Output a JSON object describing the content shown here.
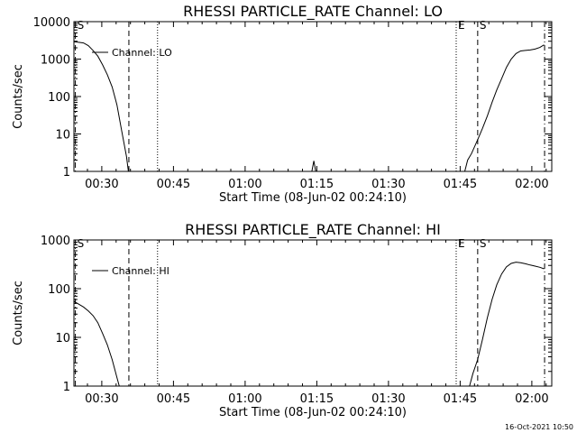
{
  "footer": {
    "timestamp": "16-Oct-2021 10:50"
  },
  "chart_data": [
    {
      "type": "line",
      "title": "RHESSI PARTICLE_RATE Channel: LO",
      "xlabel": "Start Time (08-Jun-02 00:24:10)",
      "ylabel": "Counts/sec",
      "x_unit": "minutes after 00:24:10",
      "xlim": [
        0,
        100
      ],
      "ylim": [
        1,
        10000
      ],
      "y_scale": "log",
      "grid": false,
      "legend_position": "top-left",
      "x_ticks": [
        {
          "value": 5.83,
          "label": "00:30"
        },
        {
          "value": 20.83,
          "label": "00:45"
        },
        {
          "value": 35.83,
          "label": "01:00"
        },
        {
          "value": 50.83,
          "label": "01:15"
        },
        {
          "value": 65.83,
          "label": "01:30"
        },
        {
          "value": 80.83,
          "label": "01:45"
        },
        {
          "value": 95.83,
          "label": "02:00"
        }
      ],
      "y_ticks": [
        {
          "value": 1,
          "label": "1"
        },
        {
          "value": 10,
          "label": "10"
        },
        {
          "value": 100,
          "label": "100"
        },
        {
          "value": 1000,
          "label": "1000"
        },
        {
          "value": 10000,
          "label": "10000"
        }
      ],
      "vlines": [
        {
          "x": 0.3,
          "style": "dash-dot",
          "label": "S"
        },
        {
          "x": 11.5,
          "style": "dashed",
          "label": ""
        },
        {
          "x": 17.5,
          "style": "dotted",
          "label": ""
        },
        {
          "x": 80.0,
          "style": "dotted",
          "label": "E"
        },
        {
          "x": 84.5,
          "style": "dashed",
          "label": "S"
        },
        {
          "x": 98.5,
          "style": "dash-dot",
          "label": ""
        }
      ],
      "series": [
        {
          "name": "Channel: LO",
          "points": [
            [
              0,
              2900
            ],
            [
              1,
              2800
            ],
            [
              2,
              2700
            ],
            [
              3,
              2300
            ],
            [
              4,
              1700
            ],
            [
              5,
              1200
            ],
            [
              6,
              700
            ],
            [
              7,
              380
            ],
            [
              8,
              180
            ],
            [
              9,
              60
            ],
            [
              10,
              12
            ],
            [
              11,
              2.5
            ],
            [
              11.4,
              1
            ],
            [
              49.8,
              1
            ],
            [
              50.2,
              1.9
            ],
            [
              50.6,
              1
            ],
            [
              81.8,
              1
            ],
            [
              82.4,
              2
            ],
            [
              83.2,
              3
            ],
            [
              84.5,
              7
            ],
            [
              85.5,
              14
            ],
            [
              86.5,
              30
            ],
            [
              87.5,
              70
            ],
            [
              88.5,
              150
            ],
            [
              89.5,
              300
            ],
            [
              90.5,
              600
            ],
            [
              91.5,
              1000
            ],
            [
              92.5,
              1400
            ],
            [
              93.5,
              1650
            ],
            [
              94.5,
              1700
            ],
            [
              95.5,
              1750
            ],
            [
              96.5,
              1850
            ],
            [
              97.5,
              2050
            ],
            [
              98.4,
              2400
            ]
          ]
        }
      ]
    },
    {
      "type": "line",
      "title": "RHESSI PARTICLE_RATE Channel: HI",
      "xlabel": "Start Time (08-Jun-02 00:24:10)",
      "ylabel": "Counts/sec",
      "x_unit": "minutes after 00:24:10",
      "xlim": [
        0,
        100
      ],
      "ylim": [
        1,
        1000
      ],
      "y_scale": "log",
      "grid": false,
      "legend_position": "top-left",
      "x_ticks": [
        {
          "value": 5.83,
          "label": "00:30"
        },
        {
          "value": 20.83,
          "label": "00:45"
        },
        {
          "value": 35.83,
          "label": "01:00"
        },
        {
          "value": 50.83,
          "label": "01:15"
        },
        {
          "value": 65.83,
          "label": "01:30"
        },
        {
          "value": 80.83,
          "label": "01:45"
        },
        {
          "value": 95.83,
          "label": "02:00"
        }
      ],
      "y_ticks": [
        {
          "value": 1,
          "label": "1"
        },
        {
          "value": 10,
          "label": "10"
        },
        {
          "value": 100,
          "label": "100"
        },
        {
          "value": 1000,
          "label": "1000"
        }
      ],
      "vlines": [
        {
          "x": 0.3,
          "style": "dash-dot",
          "label": "S"
        },
        {
          "x": 11.5,
          "style": "dashed",
          "label": ""
        },
        {
          "x": 17.5,
          "style": "dotted",
          "label": ""
        },
        {
          "x": 80.0,
          "style": "dotted",
          "label": "E"
        },
        {
          "x": 84.5,
          "style": "dashed",
          "label": "S"
        },
        {
          "x": 98.5,
          "style": "dash-dot",
          "label": ""
        }
      ],
      "series": [
        {
          "name": "Channel: HI",
          "points": [
            [
              0,
              55
            ],
            [
              1,
              48
            ],
            [
              2,
              42
            ],
            [
              3,
              35
            ],
            [
              4,
              28
            ],
            [
              5,
              20
            ],
            [
              6,
              12
            ],
            [
              7,
              7
            ],
            [
              8,
              3.5
            ],
            [
              9,
              1.5
            ],
            [
              9.5,
              1
            ],
            [
              82.8,
              1
            ],
            [
              83.5,
              1.8
            ],
            [
              84.5,
              3.5
            ],
            [
              85.5,
              9
            ],
            [
              86.5,
              25
            ],
            [
              87.5,
              60
            ],
            [
              88.5,
              120
            ],
            [
              89.5,
              200
            ],
            [
              90.5,
              280
            ],
            [
              91.5,
              330
            ],
            [
              92.5,
              350
            ],
            [
              93.5,
              340
            ],
            [
              94.5,
              325
            ],
            [
              95.5,
              305
            ],
            [
              96.5,
              290
            ],
            [
              97.5,
              275
            ],
            [
              98.4,
              255
            ]
          ]
        }
      ]
    }
  ]
}
